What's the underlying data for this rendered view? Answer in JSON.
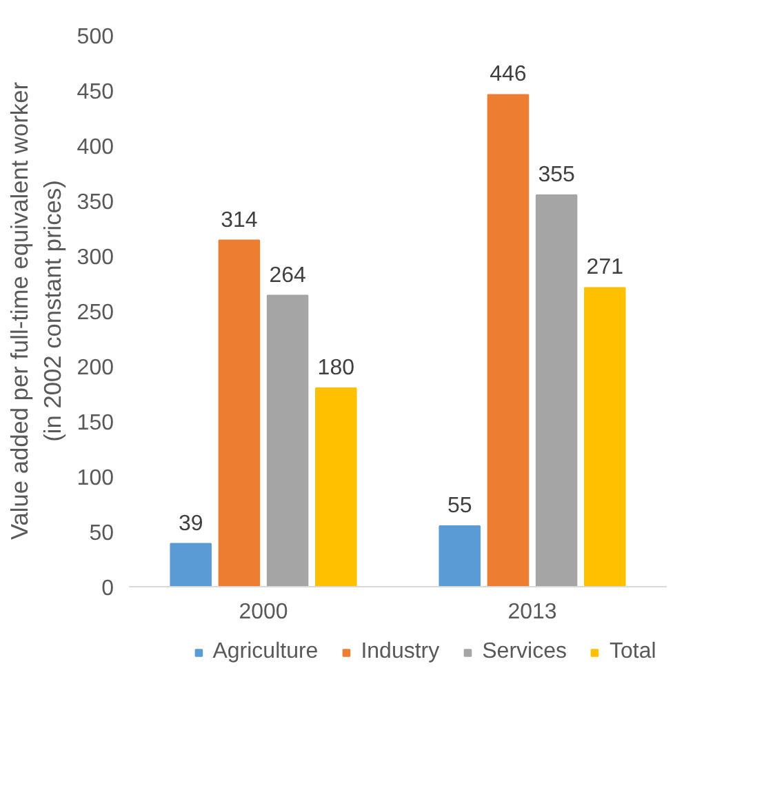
{
  "chart_data": {
    "type": "bar",
    "ylabel": "Value added per full-time equivalent worker\n(in 2002 constant prices)",
    "categories": [
      "2000",
      "2013"
    ],
    "series": [
      {
        "name": "Agriculture",
        "color": "#5b9bd5",
        "values": [
          39,
          55
        ]
      },
      {
        "name": "Industry",
        "color": "#ed7d31",
        "values": [
          314,
          446
        ]
      },
      {
        "name": "Services",
        "color": "#a5a5a5",
        "values": [
          264,
          355
        ]
      },
      {
        "name": "Total",
        "color": "#ffc000",
        "values": [
          180,
          271
        ]
      }
    ],
    "ylim": [
      0,
      500
    ],
    "yticks": [
      0,
      50,
      100,
      150,
      200,
      250,
      300,
      350,
      400,
      450,
      500
    ],
    "data_labels": true,
    "legend": "bottom",
    "grid": false
  }
}
